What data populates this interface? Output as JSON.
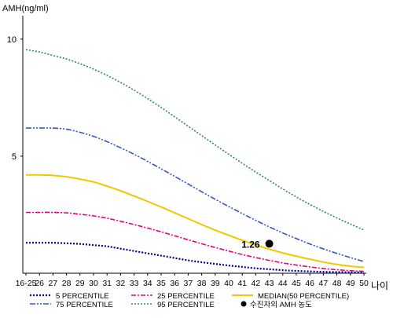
{
  "chart_data": {
    "type": "line",
    "ylabel": "AMH(ng/ml)",
    "xlabel": "나이",
    "categories": [
      "16-25",
      "26",
      "27",
      "28",
      "29",
      "30",
      "31",
      "32",
      "33",
      "34",
      "35",
      "36",
      "37",
      "38",
      "39",
      "40",
      "41",
      "42",
      "43",
      "44",
      "45",
      "46",
      "47",
      "48",
      "49",
      "50"
    ],
    "yticks": [
      5,
      10
    ],
    "ylim": [
      0,
      11
    ],
    "grid": false,
    "legend_position": "bottom",
    "series": [
      {
        "name": "5 PERCENTILE",
        "color": "#00008b",
        "dash": "2,2",
        "width": 2.2,
        "values": [
          1.3,
          1.3,
          1.3,
          1.28,
          1.25,
          1.2,
          1.15,
          1.05,
          0.95,
          0.85,
          0.75,
          0.65,
          0.55,
          0.47,
          0.4,
          0.33,
          0.27,
          0.21,
          0.17,
          0.13,
          0.1,
          0.08,
          0.06,
          0.05,
          0.04,
          0.03
        ]
      },
      {
        "name": "25 PERCENTILE",
        "color": "#e6007e",
        "dash": "6,2,2,2",
        "width": 1.6,
        "values": [
          2.6,
          2.6,
          2.6,
          2.58,
          2.52,
          2.45,
          2.35,
          2.22,
          2.08,
          1.93,
          1.77,
          1.6,
          1.43,
          1.26,
          1.1,
          0.95,
          0.8,
          0.67,
          0.55,
          0.44,
          0.35,
          0.27,
          0.2,
          0.15,
          0.11,
          0.08
        ]
      },
      {
        "name": "MEDIAN(50 PERCENTILE)",
        "color": "#f0c800",
        "dash": "",
        "width": 2.0,
        "values": [
          4.2,
          4.2,
          4.18,
          4.12,
          4.02,
          3.9,
          3.72,
          3.52,
          3.3,
          3.07,
          2.83,
          2.58,
          2.33,
          2.08,
          1.84,
          1.62,
          1.41,
          1.21,
          1.03,
          0.87,
          0.73,
          0.6,
          0.48,
          0.38,
          0.3,
          0.25
        ]
      },
      {
        "name": "75 PERCENTILE",
        "color": "#3355cc",
        "dash": "7,2,2,2,2,2",
        "width": 1.6,
        "values": [
          6.2,
          6.2,
          6.2,
          6.15,
          6.02,
          5.85,
          5.62,
          5.36,
          5.08,
          4.78,
          4.46,
          4.14,
          3.81,
          3.48,
          3.16,
          2.85,
          2.55,
          2.26,
          1.98,
          1.72,
          1.48,
          1.25,
          1.04,
          0.85,
          0.67,
          0.5
        ]
      },
      {
        "name": "95 PERCENTILE",
        "color": "#2e8b57",
        "dash": "2,2",
        "width": 1.6,
        "values": [
          9.55,
          9.45,
          9.3,
          9.15,
          8.95,
          8.72,
          8.45,
          8.15,
          7.82,
          7.46,
          7.08,
          6.68,
          6.28,
          5.88,
          5.48,
          5.08,
          4.7,
          4.32,
          3.96,
          3.6,
          3.26,
          2.94,
          2.64,
          2.36,
          2.1,
          1.85
        ]
      }
    ],
    "patient_point": {
      "name": "수진자의 AMH 농도",
      "x": "43",
      "y": 1.26,
      "label": "1.26",
      "color": "#000000"
    }
  }
}
